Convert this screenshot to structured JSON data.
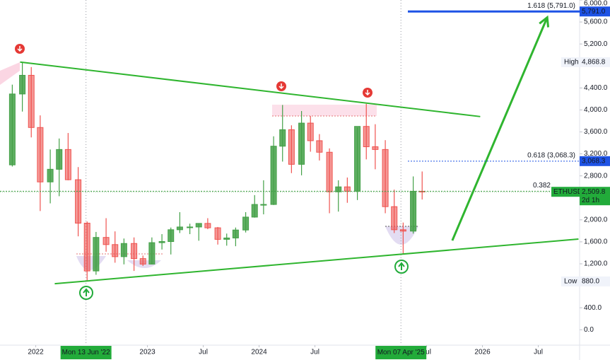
{
  "chart_data": {
    "type": "candlestick",
    "symbol": "ETHUSD",
    "up_color": "#43a047",
    "down_color": "#ef5350",
    "line_color": "#2fb52f",
    "fib_color": "#1e53e5",
    "grid": false,
    "xlim": [
      2021.68,
      2026.87
    ],
    "ylim": [
      -280,
      6000
    ],
    "xticks": [
      {
        "value": 2022,
        "label": "2022"
      },
      {
        "value": 2023,
        "label": "2023"
      },
      {
        "value": 2023.5,
        "label": "Jul"
      },
      {
        "value": 2024,
        "label": "2024"
      },
      {
        "value": 2024.5,
        "label": "Jul"
      },
      {
        "value": 2025.5,
        "label": "Jul"
      },
      {
        "value": 2026,
        "label": "2026"
      },
      {
        "value": 2026.5,
        "label": "Jul"
      }
    ],
    "yticks": [
      {
        "value": 0,
        "label": "0.0"
      },
      {
        "value": 400,
        "label": "400.0"
      },
      {
        "value": 1200,
        "label": "1,200.0"
      },
      {
        "value": 1600,
        "label": "1,600.0"
      },
      {
        "value": 2000,
        "label": "2,000.0"
      },
      {
        "value": 2800,
        "label": "2,800.0"
      },
      {
        "value": 3200,
        "label": "3,200.0"
      },
      {
        "value": 3600,
        "label": "3,600.0"
      },
      {
        "value": 4000,
        "label": "4,000.0"
      },
      {
        "value": 4400,
        "label": "4,400.0"
      },
      {
        "value": 5200,
        "label": "5,200.0"
      },
      {
        "value": 5600,
        "label": "5,600.0"
      },
      {
        "value": 6000,
        "label": "6,000.0"
      }
    ],
    "markers": [
      {
        "value": 2022.45,
        "label": "Mon 13 Jun '22"
      },
      {
        "value": 2025.27,
        "label": "Mon 07 Apr '25"
      }
    ],
    "x": [
      2021.79,
      2021.88,
      2021.96,
      2022.04,
      2022.13,
      2022.21,
      2022.29,
      2022.38,
      2022.46,
      2022.54,
      2022.63,
      2022.71,
      2022.79,
      2022.88,
      2022.96,
      2023.04,
      2023.13,
      2023.21,
      2023.29,
      2023.38,
      2023.46,
      2023.54,
      2023.63,
      2023.71,
      2023.79,
      2023.88,
      2023.96,
      2024.04,
      2024.13,
      2024.21,
      2024.29,
      2024.38,
      2024.46,
      2024.54,
      2024.63,
      2024.71,
      2024.79,
      2024.88,
      2024.96,
      2025.04,
      2025.13,
      2025.21,
      2025.29,
      2025.38,
      2025.46
    ],
    "open": [
      3000,
      4290,
      4630,
      3680,
      2690,
      2920,
      3280,
      2730,
      1940,
      1070,
      1680,
      1550,
      1330,
      1570,
      1295,
      1195,
      1585,
      1605,
      1820,
      1870,
      1870,
      1935,
      1855,
      1645,
      1670,
      1815,
      2050,
      2280,
      2280,
      3340,
      3640,
      3010,
      3760,
      3440,
      3230,
      2510,
      2600,
      2520,
      3700,
      3330,
      3280,
      2240,
      1820,
      1795,
      2520
    ],
    "high": [
      4460,
      4868.8,
      4780,
      3900,
      3280,
      3480,
      3580,
      2960,
      1970,
      1780,
      2030,
      1790,
      1660,
      1680,
      1350,
      1680,
      1740,
      1860,
      2140,
      1930,
      1930,
      2030,
      1870,
      1750,
      1860,
      2140,
      2450,
      2720,
      3520,
      4090,
      3720,
      3980,
      3890,
      3560,
      3300,
      2720,
      2770,
      3680,
      4110,
      3740,
      3450,
      2550,
      1950,
      2790,
      2880
    ],
    "low": [
      2970,
      3970,
      3500,
      2160,
      2300,
      2430,
      2720,
      1700,
      880.0,
      1000,
      1420,
      1220,
      1190,
      1070,
      1160,
      1190,
      1460,
      1370,
      1760,
      1740,
      1620,
      1830,
      1550,
      1530,
      1520,
      1770,
      2040,
      2100,
      2270,
      3060,
      2850,
      2810,
      3240,
      3080,
      2120,
      2150,
      2310,
      2360,
      3100,
      2920,
      2120,
      1760,
      1385,
      1750,
      2370
    ],
    "close": [
      4290,
      4630,
      3680,
      2690,
      2920,
      3280,
      2730,
      1940,
      1070,
      1680,
      1550,
      1330,
      1570,
      1295,
      1195,
      1585,
      1605,
      1820,
      1870,
      1870,
      1935,
      1855,
      1645,
      1670,
      1815,
      2050,
      2280,
      2280,
      3340,
      3640,
      3010,
      3760,
      3440,
      3230,
      2510,
      2600,
      2520,
      3700,
      3330,
      3280,
      2240,
      1820,
      1795,
      2520,
      2509.8
    ],
    "trendlines": [
      {
        "x": [
          2021.86,
          2025.98
        ],
        "y": [
          4871,
          3879
        ]
      },
      {
        "x": [
          2022.17,
          2026.86
        ],
        "y": [
          838,
          1650
        ]
      }
    ],
    "arrow": {
      "x": [
        2025.73,
        2026.58
      ],
      "y": [
        1624,
        5683
      ]
    },
    "fib_levels": [
      {
        "label": "1.618 (5,791.0)",
        "value": 5791.0,
        "axis_label": "5,791.0"
      },
      {
        "label": "0.618 (3,068.3)",
        "value": 3068.3,
        "axis_label": "3,068.3"
      },
      {
        "label": "0.382",
        "value": 2520
      }
    ],
    "price_labels": [
      {
        "name": "High",
        "value": 4868.8,
        "label": "4,868.8"
      },
      {
        "name": "Low",
        "value": 880.0,
        "label": "880.0"
      }
    ],
    "last_price": {
      "name": "ETHUSD",
      "value": 2509.8,
      "label": "2,509.8",
      "countdown": "2d 1h"
    }
  }
}
